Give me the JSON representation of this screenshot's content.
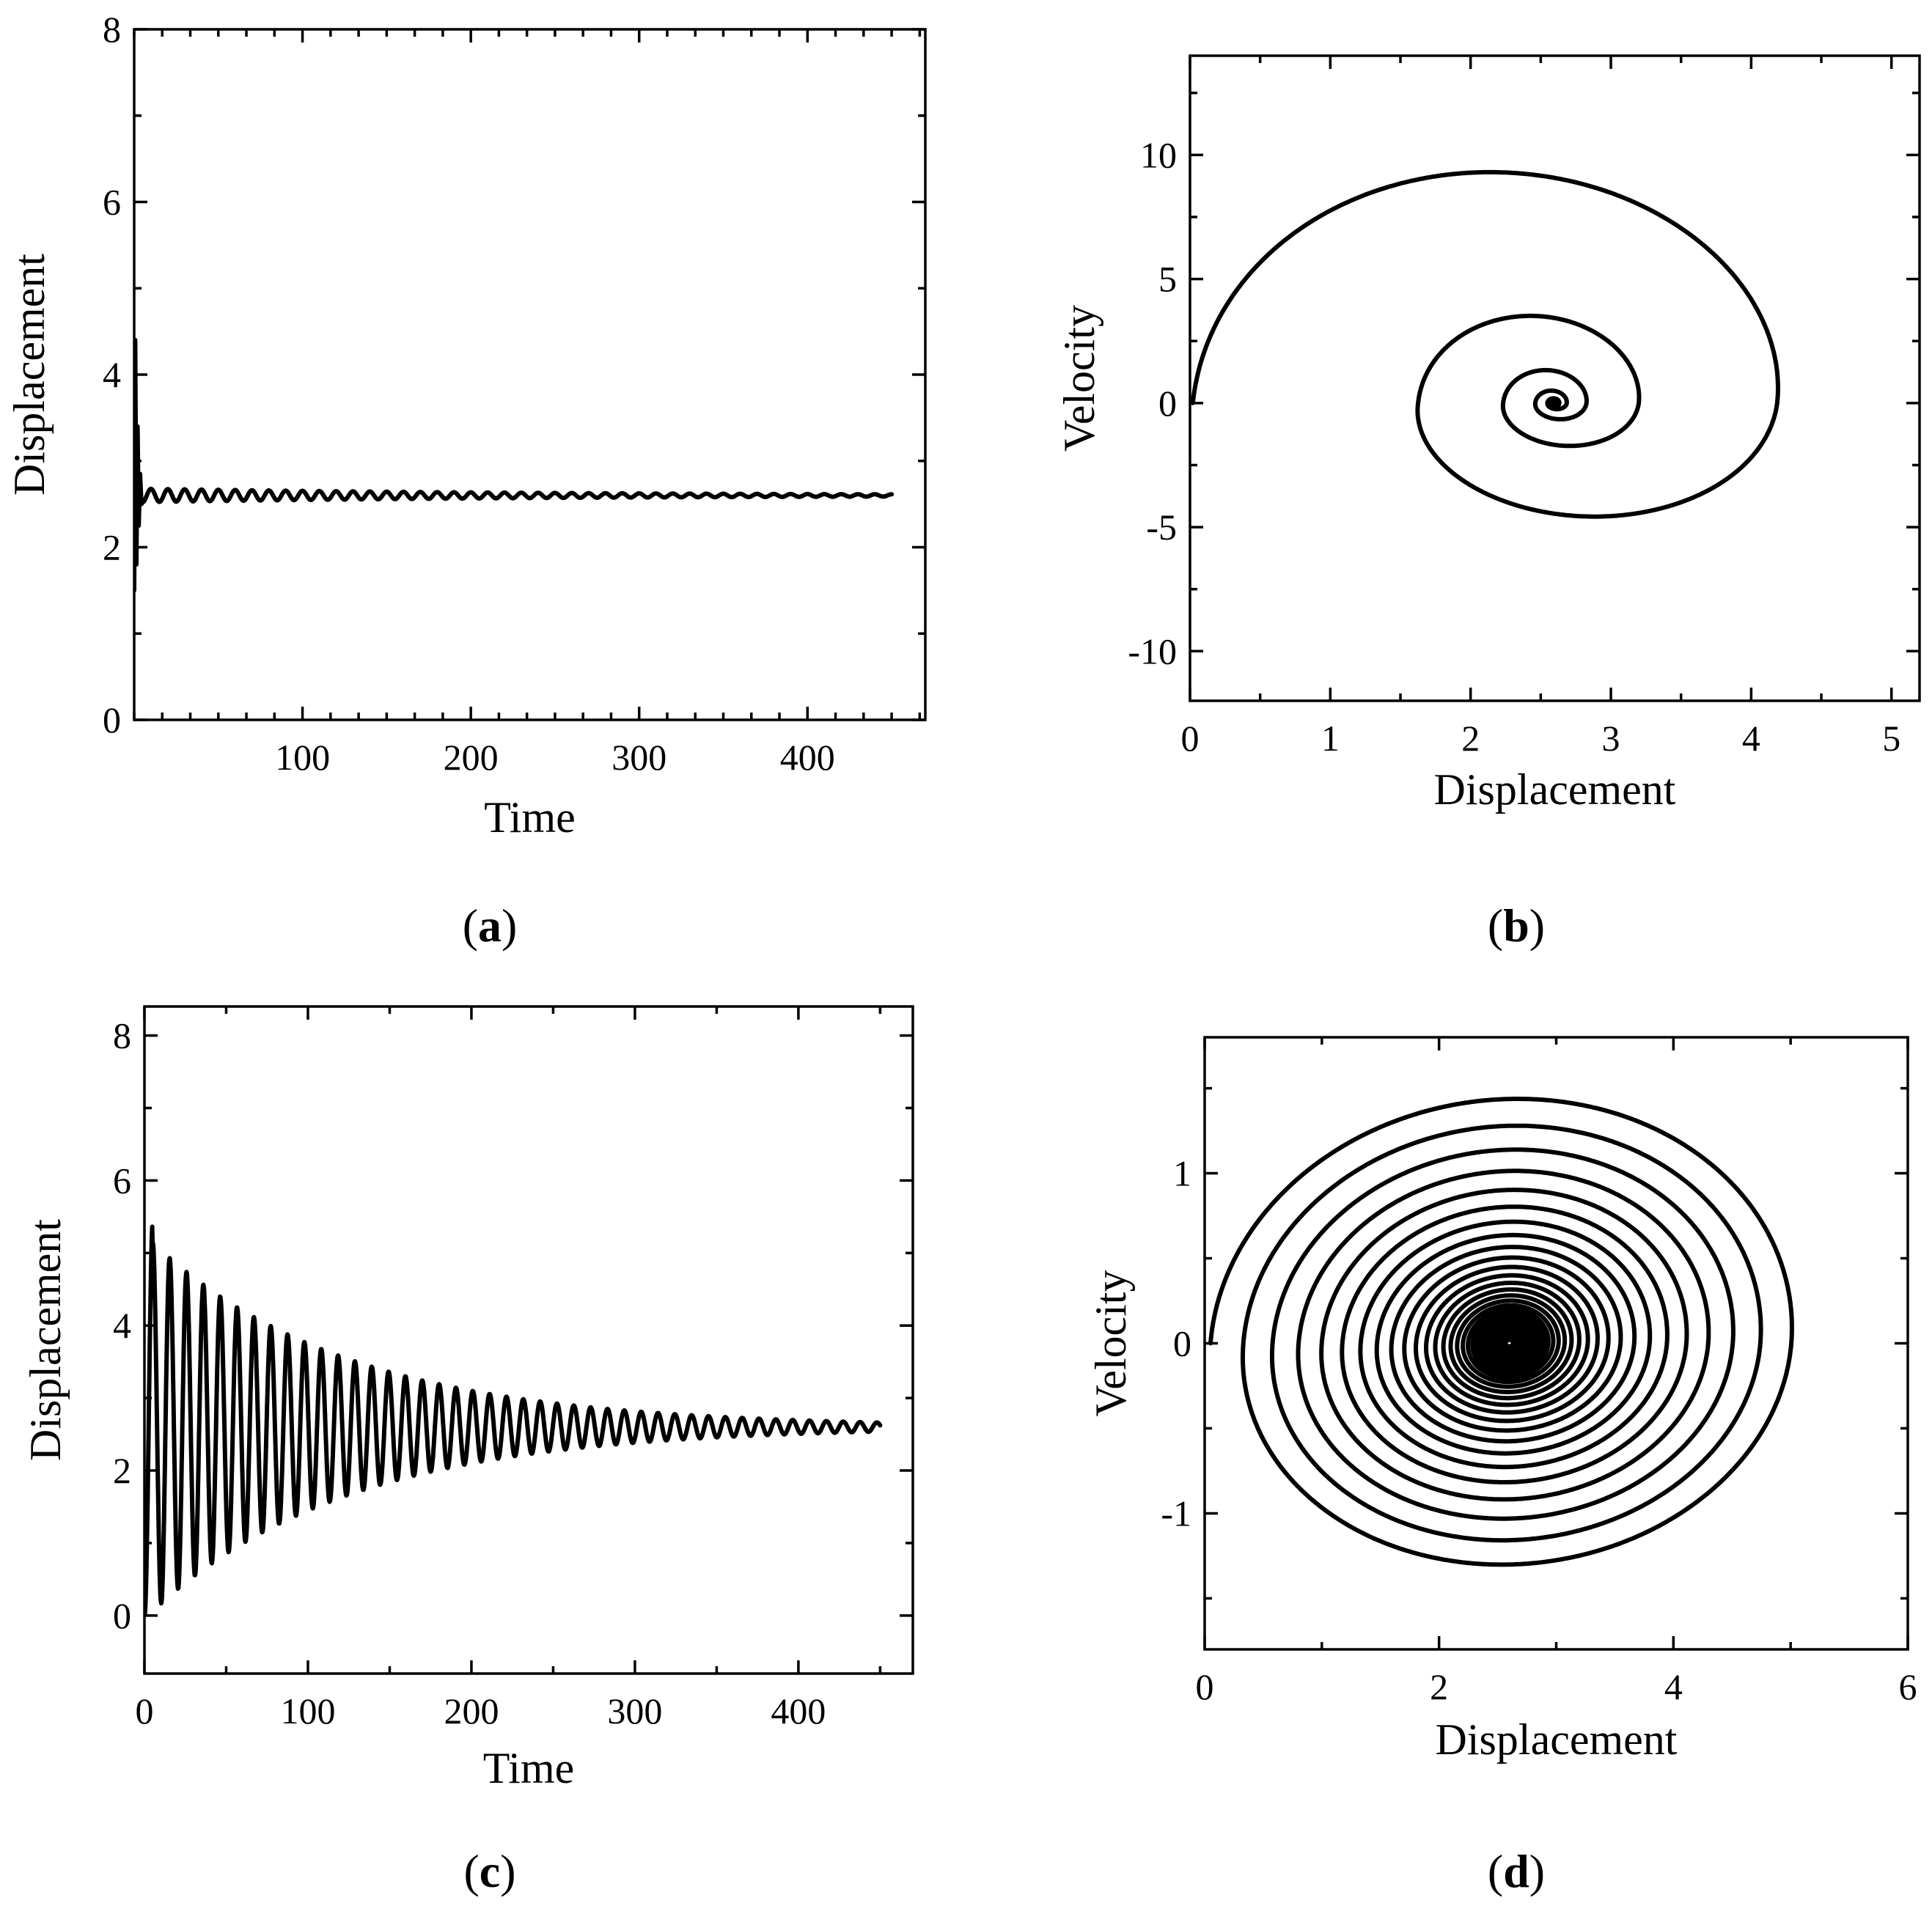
{
  "chart_data": [
    {
      "panel": "(a)",
      "type": "line",
      "xlabel": "Time",
      "ylabel": "Displacement",
      "xlim": [
        0,
        470
      ],
      "ylim": [
        0,
        8
      ],
      "xticks": [
        100,
        200,
        300,
        400
      ],
      "yticks": [
        0,
        2,
        4,
        6,
        8
      ],
      "grid": false,
      "series": [
        {
          "description_values": {
            "start_y": 1.5,
            "initial_peak_y": 4.4,
            "equilibrium_y": 2.6,
            "early_oscillation_amplitude": 0.08,
            "oscillation_period": 10,
            "decay_time": 250,
            "t_end": 450
          },
          "x": [
            0,
            1,
            2,
            3,
            5,
            10,
            20,
            30,
            40,
            50,
            75,
            100,
            150,
            200,
            250,
            300,
            350,
            400,
            450
          ],
          "y": [
            1.5,
            4.4,
            1.9,
            3.3,
            2.5,
            2.62,
            2.55,
            2.66,
            2.56,
            2.64,
            2.58,
            2.62,
            2.59,
            2.61,
            2.6,
            2.6,
            2.6,
            2.6,
            2.6
          ]
        }
      ]
    },
    {
      "panel": "(b)",
      "type": "line",
      "xlabel": "Displacement",
      "ylabel": "Velocity",
      "xlim": [
        0,
        5.2
      ],
      "ylim": [
        -12,
        14
      ],
      "xticks": [
        0,
        1,
        2,
        3,
        4,
        5
      ],
      "yticks": [
        -10,
        -5,
        0,
        5,
        10
      ],
      "grid": false,
      "series": [
        {
          "description_values": {
            "center_x": 2.6,
            "center_y": 0,
            "outer_right_x": 4.38,
            "outer_top_y": 11.5,
            "outer_bottom_y": -7.4,
            "second_loop_left_x": 1.6,
            "second_loop_right_x": 3.32,
            "second_loop_top_y": 4.6,
            "second_loop_bottom_y": -2.9
          },
          "x": [
            0,
            0.3,
            1.0,
            2.1,
            3.3,
            4.1,
            4.38,
            4.0,
            3.1,
            2.2,
            1.6,
            1.9,
            2.45,
            3.0,
            3.32,
            2.85,
            2.3,
            2.6
          ],
          "y": [
            0,
            6,
            10,
            11.5,
            10,
            5,
            0,
            -5,
            -7.4,
            -5.5,
            0,
            3.2,
            4.6,
            3,
            0,
            -2.9,
            0,
            0
          ]
        }
      ]
    },
    {
      "panel": "(c)",
      "type": "line",
      "xlabel": "Time",
      "ylabel": "Displacement",
      "xlim": [
        0,
        470
      ],
      "ylim": [
        -0.8,
        8.4
      ],
      "xticks": [
        0,
        100,
        200,
        300,
        400
      ],
      "yticks": [
        0,
        2,
        4,
        6,
        8
      ],
      "grid": false,
      "series": [
        {
          "description_values": {
            "start_y": 0,
            "equilibrium_y": 2.6,
            "first_peak_y": 5.1,
            "first_trough_y": 0.2,
            "oscillation_period": 10.3,
            "decay_time": 120,
            "t_end": 450
          },
          "x": [
            0,
            5,
            10,
            20,
            50,
            100,
            150,
            200,
            250,
            300,
            350,
            400,
            450
          ],
          "y": [
            0,
            5.1,
            0.2,
            4.8,
            4.2,
            3.5,
            3.2,
            2.95,
            2.8,
            2.7,
            2.65,
            2.62,
            2.6
          ]
        }
      ]
    },
    {
      "panel": "(d)",
      "type": "line",
      "xlabel": "Displacement",
      "ylabel": "Velocity",
      "xlim": [
        0,
        6
      ],
      "ylim": [
        -1.8,
        1.8
      ],
      "xticks": [
        0,
        2,
        4,
        6
      ],
      "yticks": [
        -1,
        0,
        1
      ],
      "grid": false,
      "series": [
        {
          "description_values": {
            "center_x": 2.6,
            "center_y": 0,
            "outer_left_x": 0,
            "outer_right_x": 5.05,
            "outer_top_y": 1.48,
            "outer_bottom_y": -1.42,
            "loops": 38
          },
          "x": [
            0,
            0.4,
            1.5,
            2.6,
            3.8,
            4.8,
            5.05,
            4.6,
            3.5,
            2.6,
            1.5,
            0.6,
            0.35
          ],
          "y": [
            0,
            0.9,
            1.38,
            1.48,
            1.4,
            0.8,
            0,
            -0.8,
            -1.3,
            -1.42,
            -1.3,
            -0.7,
            0
          ]
        }
      ]
    }
  ],
  "panels": {
    "a": {
      "label": "(a)",
      "letter": "a"
    },
    "b": {
      "label": "(b)",
      "letter": "b"
    },
    "c": {
      "label": "(c)",
      "letter": "c"
    },
    "d": {
      "label": "(d)",
      "letter": "d"
    }
  }
}
